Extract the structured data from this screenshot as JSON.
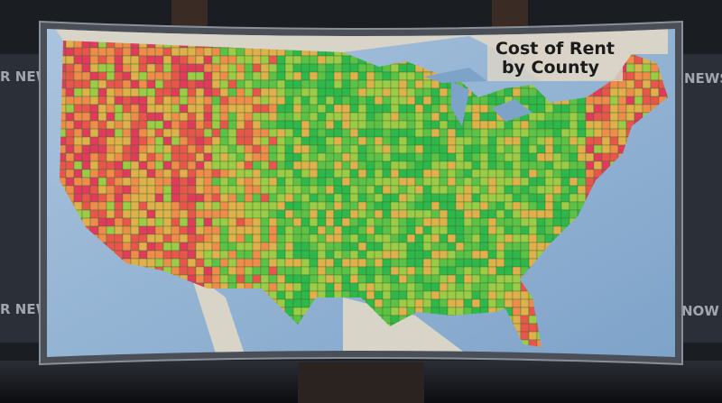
{
  "map": {
    "title_lines": [
      "Cost of Rent",
      "by County"
    ]
  },
  "background": {
    "texts": [
      "R NEWS",
      "NEWS",
      "R NEWS",
      "NOW J"
    ]
  }
}
